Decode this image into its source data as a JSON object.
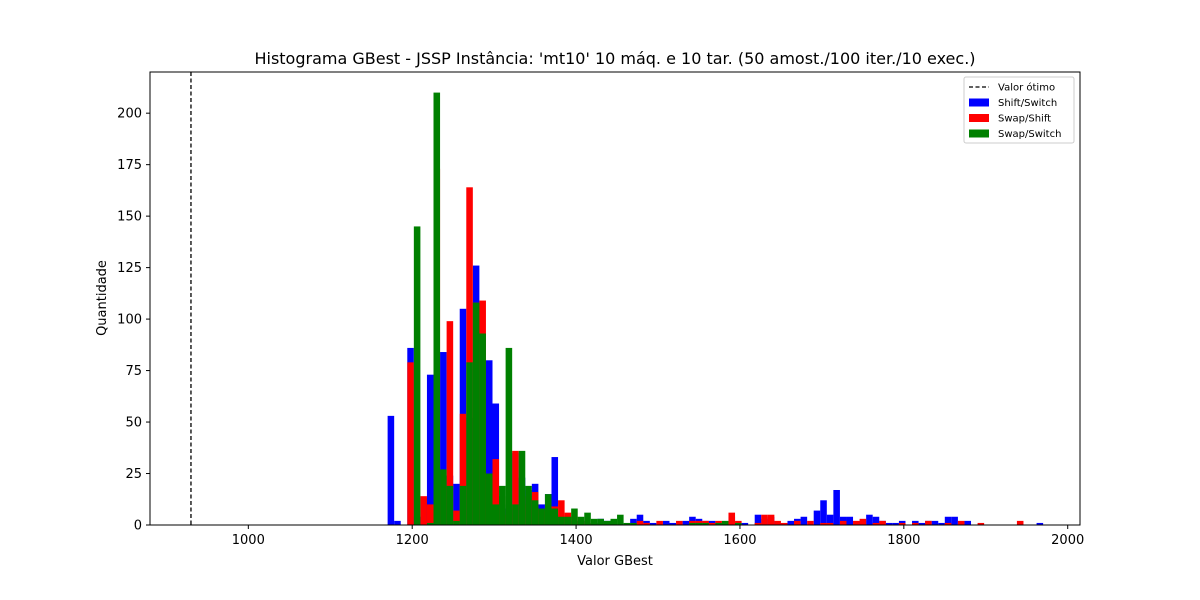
{
  "chart_data": {
    "type": "bar",
    "title": "Histograma GBest - JSSP Instância: 'mt10' 10 máq. e 10 tar. (50 amost./100 iter./10 exec.)",
    "xlabel": "Valor GBest",
    "ylabel": "Quantidade",
    "xlim": [
      880,
      2015
    ],
    "ylim": [
      0,
      220
    ],
    "xticks": [
      1000,
      1200,
      1400,
      1600,
      1800,
      2000
    ],
    "yticks": [
      0,
      25,
      50,
      75,
      100,
      125,
      150,
      175,
      200
    ],
    "grid": false,
    "legend_position": "top-right",
    "reference_line": {
      "name": "Valor ótimo",
      "x": 930,
      "style": "dashed",
      "color": "#000000"
    },
    "series": [
      {
        "name": "Shift/Switch",
        "color": "#0000ff",
        "points": [
          [
            1170,
            53
          ],
          [
            1178,
            2
          ],
          [
            1194,
            86
          ],
          [
            1202,
            4
          ],
          [
            1210,
            13
          ],
          [
            1218,
            73
          ],
          [
            1226,
            8
          ],
          [
            1234,
            84
          ],
          [
            1242,
            24
          ],
          [
            1250,
            20
          ],
          [
            1258,
            105
          ],
          [
            1266,
            52
          ],
          [
            1274,
            126
          ],
          [
            1282,
            24
          ],
          [
            1290,
            80
          ],
          [
            1298,
            59
          ],
          [
            1306,
            10
          ],
          [
            1314,
            8
          ],
          [
            1322,
            35
          ],
          [
            1330,
            23
          ],
          [
            1338,
            17
          ],
          [
            1346,
            20
          ],
          [
            1354,
            10
          ],
          [
            1362,
            15
          ],
          [
            1370,
            33
          ],
          [
            1378,
            5
          ],
          [
            1386,
            4
          ],
          [
            1394,
            2
          ],
          [
            1402,
            2
          ],
          [
            1418,
            1
          ],
          [
            1426,
            3
          ],
          [
            1434,
            2
          ],
          [
            1442,
            1
          ],
          [
            1466,
            3
          ],
          [
            1474,
            5
          ],
          [
            1482,
            2
          ],
          [
            1490,
            1
          ],
          [
            1506,
            2
          ],
          [
            1514,
            1
          ],
          [
            1530,
            2
          ],
          [
            1538,
            4
          ],
          [
            1546,
            3
          ],
          [
            1554,
            2
          ],
          [
            1562,
            2
          ],
          [
            1578,
            1
          ],
          [
            1586,
            4
          ],
          [
            1602,
            1
          ],
          [
            1618,
            5
          ],
          [
            1626,
            3
          ],
          [
            1634,
            4
          ],
          [
            1642,
            1
          ],
          [
            1658,
            2
          ],
          [
            1666,
            3
          ],
          [
            1674,
            4
          ],
          [
            1690,
            7
          ],
          [
            1698,
            12
          ],
          [
            1706,
            5
          ],
          [
            1714,
            17
          ],
          [
            1722,
            4
          ],
          [
            1730,
            4
          ],
          [
            1746,
            2
          ],
          [
            1754,
            5
          ],
          [
            1762,
            4
          ],
          [
            1770,
            2
          ],
          [
            1778,
            1
          ],
          [
            1786,
            1
          ],
          [
            1794,
            2
          ],
          [
            1810,
            2
          ],
          [
            1818,
            1
          ],
          [
            1826,
            2
          ],
          [
            1834,
            2
          ],
          [
            1842,
            1
          ],
          [
            1850,
            4
          ],
          [
            1858,
            4
          ],
          [
            1874,
            2
          ],
          [
            1962,
            1
          ]
        ]
      },
      {
        "name": "Swap/Shift",
        "color": "#ff0000",
        "points": [
          [
            1194,
            79
          ],
          [
            1210,
            14
          ],
          [
            1218,
            10
          ],
          [
            1226,
            173
          ],
          [
            1234,
            19
          ],
          [
            1242,
            99
          ],
          [
            1250,
            7
          ],
          [
            1258,
            54
          ],
          [
            1266,
            164
          ],
          [
            1274,
            108
          ],
          [
            1282,
            109
          ],
          [
            1290,
            9
          ],
          [
            1298,
            32
          ],
          [
            1306,
            14
          ],
          [
            1314,
            5
          ],
          [
            1322,
            36
          ],
          [
            1330,
            10
          ],
          [
            1338,
            14
          ],
          [
            1346,
            16
          ],
          [
            1354,
            7
          ],
          [
            1362,
            5
          ],
          [
            1370,
            9
          ],
          [
            1378,
            12
          ],
          [
            1386,
            6
          ],
          [
            1394,
            4
          ],
          [
            1402,
            2
          ],
          [
            1410,
            1
          ],
          [
            1426,
            1
          ],
          [
            1474,
            2
          ],
          [
            1482,
            1
          ],
          [
            1498,
            2
          ],
          [
            1522,
            2
          ],
          [
            1538,
            2
          ],
          [
            1546,
            2
          ],
          [
            1554,
            2
          ],
          [
            1562,
            1
          ],
          [
            1570,
            2
          ],
          [
            1578,
            1
          ],
          [
            1586,
            6
          ],
          [
            1594,
            2
          ],
          [
            1618,
            1
          ],
          [
            1626,
            5
          ],
          [
            1634,
            5
          ],
          [
            1642,
            2
          ],
          [
            1650,
            1
          ],
          [
            1666,
            2
          ],
          [
            1682,
            2
          ],
          [
            1698,
            1
          ],
          [
            1706,
            1
          ],
          [
            1722,
            2
          ],
          [
            1738,
            2
          ],
          [
            1746,
            3
          ],
          [
            1762,
            1
          ],
          [
            1770,
            2
          ],
          [
            1794,
            1
          ],
          [
            1810,
            1
          ],
          [
            1826,
            2
          ],
          [
            1850,
            1
          ],
          [
            1866,
            2
          ],
          [
            1890,
            1
          ],
          [
            1938,
            2
          ]
        ]
      },
      {
        "name": "Swap/Switch",
        "color": "#008000",
        "points": [
          [
            1202,
            145
          ],
          [
            1218,
            1
          ],
          [
            1226,
            210
          ],
          [
            1234,
            27
          ],
          [
            1242,
            19
          ],
          [
            1250,
            2
          ],
          [
            1258,
            19
          ],
          [
            1266,
            79
          ],
          [
            1274,
            108
          ],
          [
            1282,
            93
          ],
          [
            1290,
            25
          ],
          [
            1298,
            10
          ],
          [
            1306,
            19
          ],
          [
            1314,
            86
          ],
          [
            1322,
            10
          ],
          [
            1330,
            36
          ],
          [
            1338,
            19
          ],
          [
            1346,
            12
          ],
          [
            1354,
            8
          ],
          [
            1362,
            15
          ],
          [
            1370,
            8
          ],
          [
            1378,
            4
          ],
          [
            1386,
            4
          ],
          [
            1394,
            8
          ],
          [
            1402,
            4
          ],
          [
            1410,
            6
          ],
          [
            1418,
            3
          ],
          [
            1426,
            3
          ],
          [
            1434,
            2
          ],
          [
            1442,
            3
          ],
          [
            1450,
            5
          ],
          [
            1458,
            1
          ],
          [
            1466,
            1
          ],
          [
            1538,
            1
          ],
          [
            1546,
            1
          ],
          [
            1554,
            1
          ],
          [
            1570,
            1
          ],
          [
            1578,
            2
          ],
          [
            1594,
            1
          ]
        ]
      }
    ]
  }
}
